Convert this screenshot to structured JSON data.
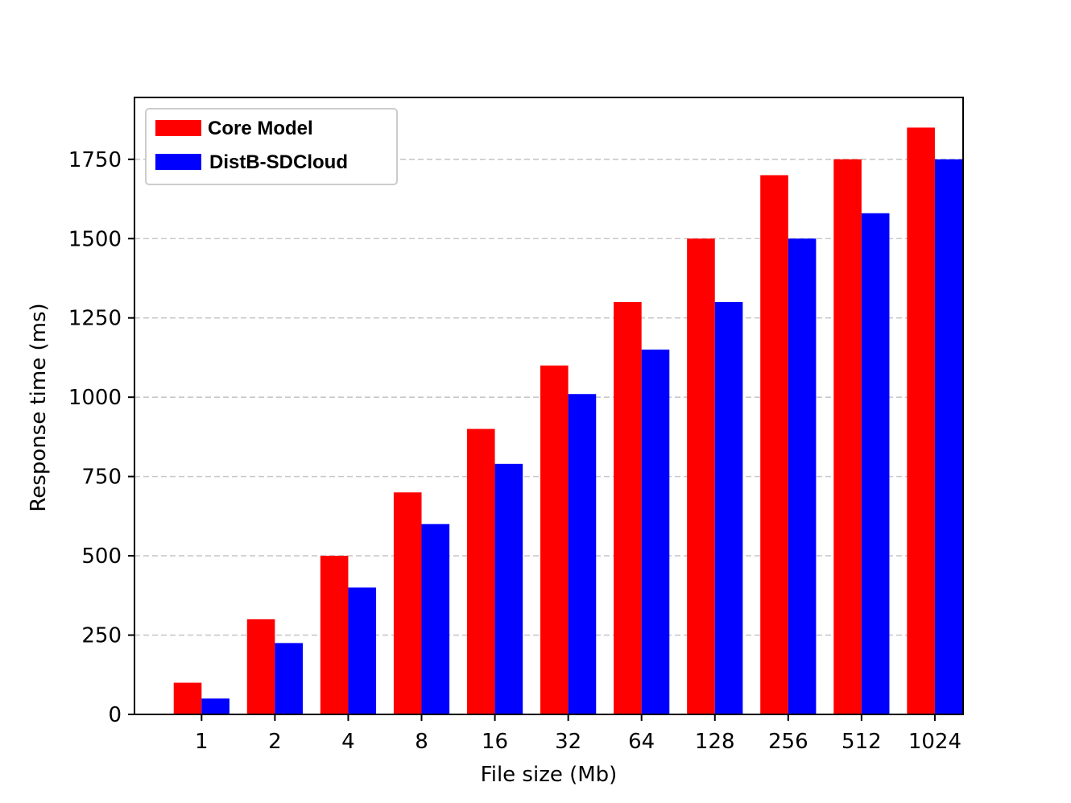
{
  "chart_data": {
    "type": "bar",
    "xlabel": "File size (Mb)",
    "ylabel": "Response time (ms)",
    "categories": [
      "1",
      "2",
      "4",
      "8",
      "16",
      "32",
      "64",
      "128",
      "256",
      "512",
      "1024"
    ],
    "series": [
      {
        "name": "Core Model",
        "color": "#ff0000",
        "values": [
          100,
          300,
          500,
          700,
          900,
          1100,
          1300,
          1500,
          1700,
          1750,
          1850
        ]
      },
      {
        "name": "DistB-SDCloud",
        "color": "#0000ff",
        "values": [
          50,
          225,
          400,
          600,
          790,
          1010,
          1150,
          1300,
          1500,
          1580,
          1750
        ]
      }
    ],
    "yticks": [
      0,
      250,
      500,
      750,
      1000,
      1250,
      1500,
      1750
    ],
    "ylim": [
      0,
      1945
    ],
    "grid": "y-dashed",
    "legend_position": "top-left"
  }
}
